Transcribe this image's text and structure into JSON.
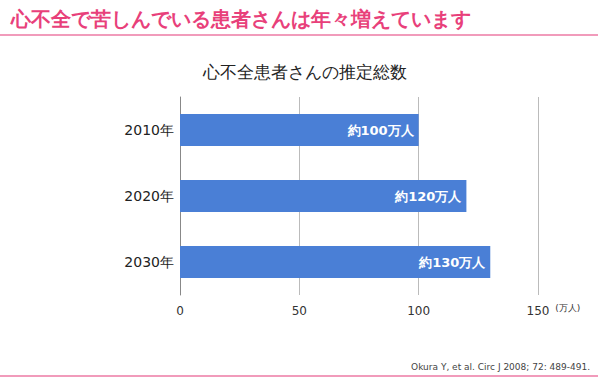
{
  "chart_data": {
    "type": "bar",
    "title": "心不全で苦しんでいる患者さんは年々増えています",
    "subtitle": "心不全患者さんの推定総数",
    "orientation": "horizontal",
    "categories": [
      "2010年",
      "2020年",
      "2030年"
    ],
    "values": [
      100,
      120,
      130
    ],
    "value_labels": [
      "約100万人",
      "約120万人",
      "約130万人"
    ],
    "data_labels": true,
    "color": "#4a7fd6",
    "xlim": [
      0,
      150
    ],
    "xticks": [
      0,
      50,
      100,
      150
    ],
    "xlabel": "(万人)",
    "grid": true,
    "annotations": [
      "Okura Y, et al. Circ J 2008; 72: 489-491."
    ]
  }
}
